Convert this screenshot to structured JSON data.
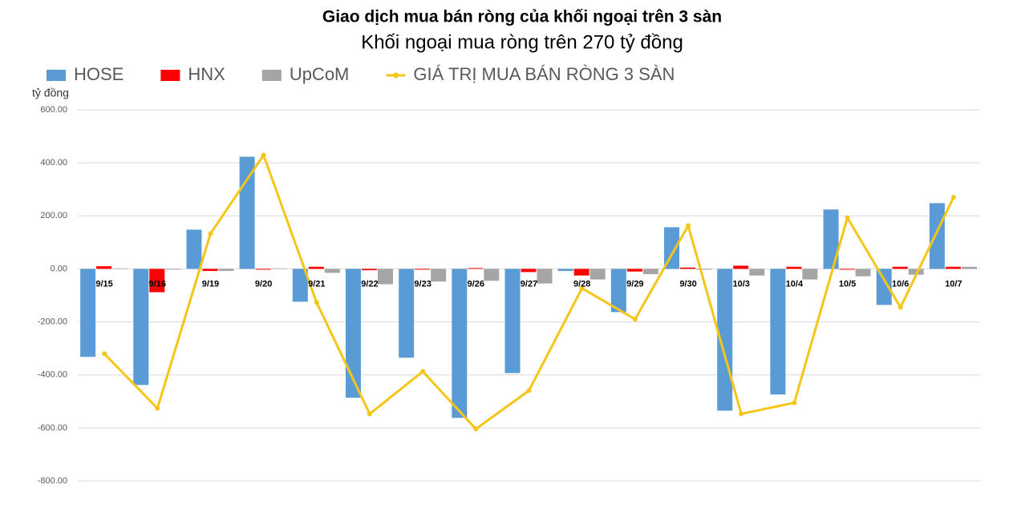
{
  "chart_data": {
    "type": "bar_line",
    "title": "Giao dịch mua bán ròng của khối ngoại trên 3 sàn",
    "subtitle": "Khối ngoại mua ròng trên 270 tỷ đồng",
    "y_label": "tỷ đồng",
    "categories": [
      "9/15",
      "9/16",
      "9/19",
      "9/20",
      "9/21",
      "9/22",
      "9/23",
      "9/26",
      "9/27",
      "9/28",
      "9/29",
      "9/30",
      "10/3",
      "10/4",
      "10/5",
      "10/6",
      "10/7"
    ],
    "series": [
      {
        "name": "HOSE",
        "type": "bar",
        "color": "#5b9bd5",
        "values": [
          -332,
          -438,
          148,
          423,
          -124,
          -486,
          -335,
          -562,
          -393,
          -8,
          -163,
          157,
          -535,
          -474,
          224,
          -136,
          248
        ]
      },
      {
        "name": "HNX",
        "type": "bar",
        "color": "#ff0000",
        "values": [
          10,
          -88,
          -8,
          -3,
          8,
          -5,
          -3,
          3,
          -12,
          -25,
          -10,
          5,
          12,
          8,
          -3,
          8,
          8
        ]
      },
      {
        "name": "UpCoM",
        "type": "bar",
        "color": "#a5a5a5",
        "values": [
          2,
          -3,
          -8,
          2,
          -15,
          -58,
          -48,
          -45,
          -55,
          -40,
          -20,
          -3,
          -25,
          -40,
          -28,
          -22,
          8
        ]
      },
      {
        "name": "GIÁ TRỊ MUA BÁN RÒNG 3 SÀN",
        "type": "line",
        "color": "#f5c518",
        "values": [
          -320,
          -526,
          133,
          429,
          -127,
          -547,
          -387,
          -604,
          -459,
          -73,
          -190,
          163,
          -547,
          -505,
          193,
          -145,
          270
        ]
      }
    ],
    "ylim": [
      -800,
      600
    ],
    "yticks": [
      {
        "value": -800,
        "label": "-800.00"
      },
      {
        "value": -600,
        "label": "-600.00"
      },
      {
        "value": -400,
        "label": "-400.00"
      },
      {
        "value": -200,
        "label": "-200.00"
      },
      {
        "value": 0,
        "label": "0.00"
      },
      {
        "value": 200,
        "label": "200.00"
      },
      {
        "value": 400,
        "label": "400.00"
      },
      {
        "value": 600,
        "label": "600.00"
      }
    ],
    "grid": true
  }
}
